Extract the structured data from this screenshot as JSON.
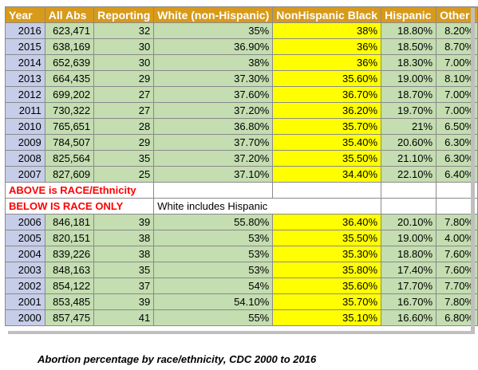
{
  "table": {
    "headers": [
      "Year",
      "All Abs",
      "Reporting",
      "White (non-Hispanic)",
      "NonHispanic Black",
      "Hispanic",
      "Other"
    ],
    "rows_top": [
      [
        "2016",
        "623,471",
        "32",
        "35%",
        "38%",
        "18.80%",
        "8.20%"
      ],
      [
        "2015",
        "638,169",
        "30",
        "36.90%",
        "36%",
        "18.50%",
        "8.70%"
      ],
      [
        "2014",
        "652,639",
        "30",
        "38%",
        "36%",
        "18.30%",
        "7.00%"
      ],
      [
        "2013",
        "664,435",
        "29",
        "37.30%",
        "35.60%",
        "19.00%",
        "8.10%"
      ],
      [
        "2012",
        "699,202",
        "27",
        "37.60%",
        "36.70%",
        "18.70%",
        "7.00%"
      ],
      [
        "2011",
        "730,322",
        "27",
        "37.20%",
        "36.20%",
        "19.70%",
        "7.00%"
      ],
      [
        "2010",
        "765,651",
        "28",
        "36.80%",
        "35.70%",
        "21%",
        "6.50%"
      ],
      [
        "2009",
        "784,507",
        "29",
        "37.70%",
        "35.40%",
        "20.60%",
        "6.30%"
      ],
      [
        "2008",
        "825,564",
        "35",
        "37.20%",
        "35.50%",
        "21.10%",
        "6.30%"
      ],
      [
        "2007",
        "827,609",
        "25",
        "37.10%",
        "34.40%",
        "22.10%",
        "6.40%"
      ]
    ],
    "note_above": "ABOVE is RACE/Ethnicity",
    "note_below": "BELOW IS RACE ONLY",
    "note_white": "White includes Hispanic",
    "rows_bottom": [
      [
        "2006",
        "846,181",
        "39",
        "55.80%",
        "36.40%",
        "20.10%",
        "7.80%"
      ],
      [
        "2005",
        "820,151",
        "38",
        "53%",
        "35.50%",
        "19.00%",
        "4.00%"
      ],
      [
        "2004",
        "839,226",
        "38",
        "53%",
        "35.30%",
        "18.80%",
        "7.60%"
      ],
      [
        "2003",
        "848,163",
        "35",
        "53%",
        "35.80%",
        "17.40%",
        "7.60%"
      ],
      [
        "2002",
        "854,122",
        "37",
        "54%",
        "35.60%",
        "17.70%",
        "7.70%"
      ],
      [
        "2001",
        "853,485",
        "39",
        "54.10%",
        "35.70%",
        "16.70%",
        "7.80%"
      ],
      [
        "2000",
        "857,475",
        "41",
        "55%",
        "35.10%",
        "16.60%",
        "6.80%"
      ]
    ]
  },
  "caption": "Abortion percentage by race/ethnicity, CDC 2000 to 2016",
  "colors": {
    "header_bg": "#d89a1a",
    "year_bg": "#c6cde8",
    "data_bg": "#c4ddb1",
    "highlight_bg": "#ffff00",
    "note_text": "#ff0000"
  }
}
